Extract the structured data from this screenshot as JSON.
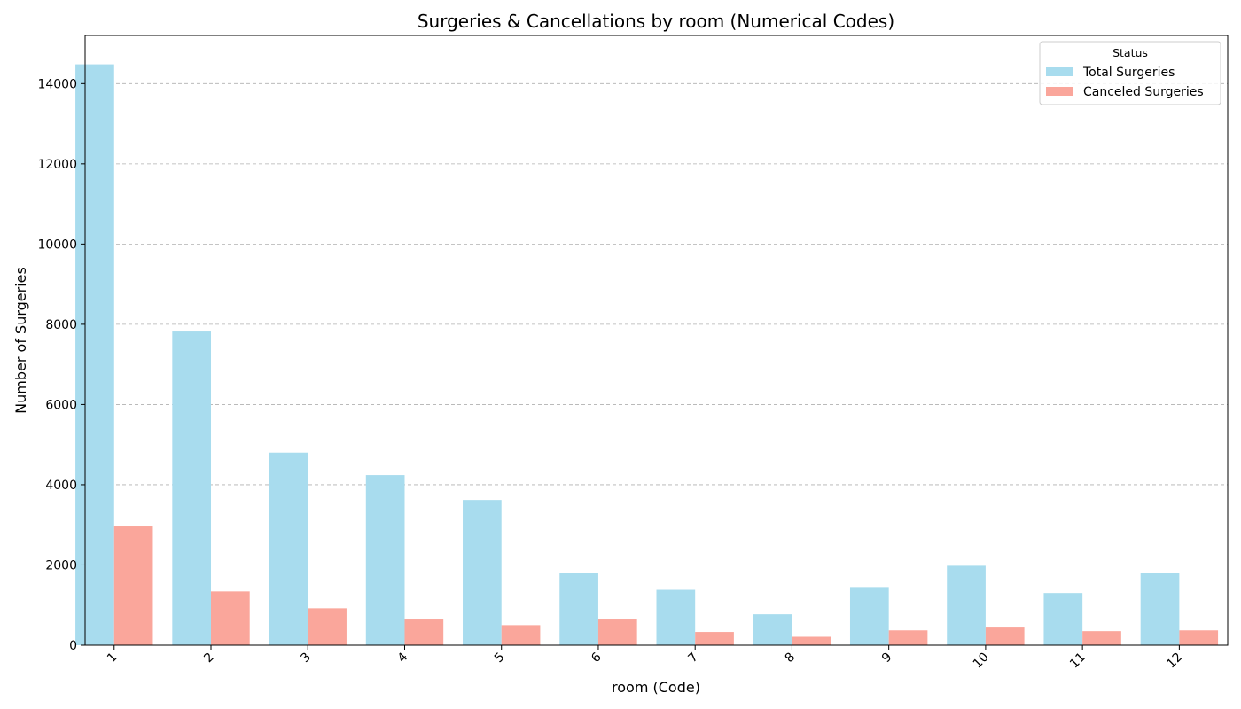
{
  "chart_data": {
    "type": "bar",
    "title": "Surgeries & Cancellations by room (Numerical Codes)",
    "xlabel": "room (Code)",
    "ylabel": "Number of Surgeries",
    "categories": [
      "1",
      "2",
      "3",
      "4",
      "5",
      "6",
      "7",
      "8",
      "9",
      "10",
      "11",
      "12"
    ],
    "series": [
      {
        "name": "Total Surgeries",
        "color": "#a8dcee",
        "values": [
          14480,
          7820,
          4800,
          4240,
          3620,
          1810,
          1380,
          770,
          1450,
          1980,
          1300,
          1810
        ]
      },
      {
        "name": "Canceled Surgeries",
        "color": "#faa69b",
        "values": [
          2960,
          1340,
          920,
          640,
          500,
          640,
          330,
          210,
          370,
          440,
          350,
          370
        ]
      }
    ],
    "ylim": [
      0,
      15200
    ],
    "yticks": [
      0,
      2000,
      4000,
      6000,
      8000,
      10000,
      12000,
      14000
    ],
    "grid": "y-dashed",
    "legend": {
      "title": "Status",
      "placement": "top-right"
    }
  }
}
